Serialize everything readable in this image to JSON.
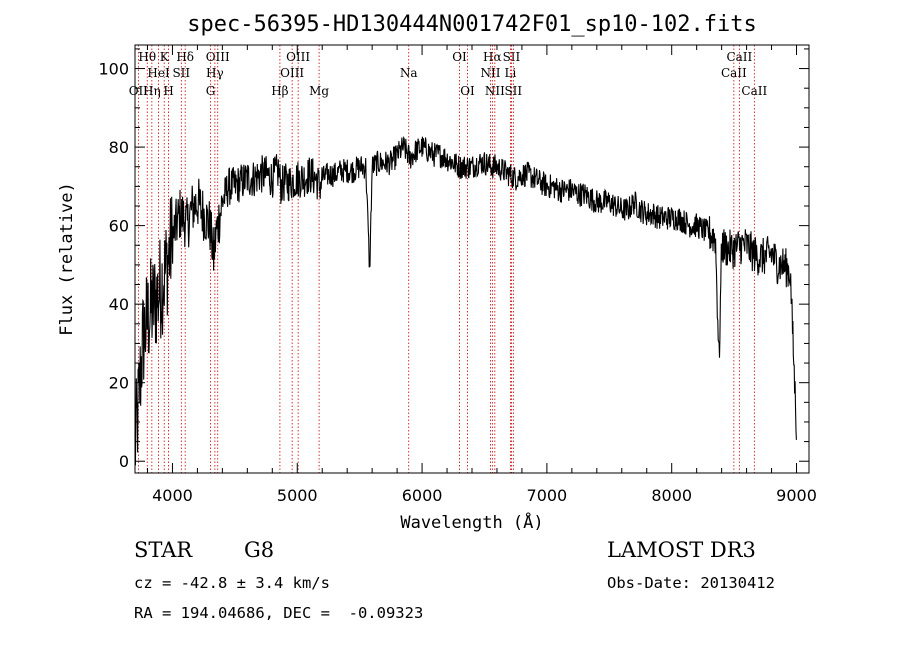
{
  "chart_data": {
    "type": "line",
    "title": "spec-56395-HD130444N001742F01_sp10-102.fits",
    "xlabel": "Wavelength (Å)",
    "ylabel": "Flux (relative)",
    "xlim": [
      3700,
      9100
    ],
    "ylim": [
      -3,
      106
    ],
    "x_ticks": [
      4000,
      5000,
      6000,
      7000,
      8000,
      9000
    ],
    "y_ticks": [
      0,
      20,
      40,
      60,
      80,
      100
    ],
    "grid": false,
    "series": [
      {
        "x": [
          3700,
          3730,
          3760,
          3790,
          3820,
          3850,
          3880,
          3910,
          3940,
          3970,
          4000,
          4030,
          4060,
          4090,
          4120,
          4150,
          4200,
          4250,
          4300,
          4330,
          4350,
          4400,
          4450,
          4500,
          4550,
          4600,
          4650,
          4700,
          4750,
          4800,
          4850,
          4870,
          4900,
          4950,
          5000,
          5050,
          5100,
          5150,
          5180,
          5200,
          5250,
          5300,
          5350,
          5400,
          5450,
          5500,
          5550,
          5580,
          5600,
          5650,
          5700,
          5750,
          5800,
          5850,
          5890,
          5900,
          5950,
          6000,
          6050,
          6100,
          6150,
          6200,
          6250,
          6300,
          6350,
          6400,
          6450,
          6500,
          6560,
          6600,
          6650,
          6700,
          6750,
          6800,
          6850,
          6900,
          6950,
          7000,
          7050,
          7100,
          7150,
          7200,
          7250,
          7300,
          7350,
          7400,
          7450,
          7500,
          7550,
          7600,
          7650,
          7700,
          7750,
          7800,
          7850,
          7900,
          7950,
          8000,
          8050,
          8100,
          8150,
          8200,
          8250,
          8300,
          8350,
          8380,
          8400,
          8450,
          8500,
          8550,
          8600,
          8650,
          8700,
          8750,
          8800,
          8850,
          8900,
          8950,
          9000
        ],
        "y": [
          3,
          15,
          30,
          35,
          38,
          40,
          42,
          45,
          48,
          52,
          57,
          60,
          63,
          62,
          60,
          64,
          66,
          63,
          60,
          52,
          58,
          66,
          70,
          70,
          71,
          72,
          72,
          73,
          73,
          72,
          74,
          70,
          71,
          71,
          72,
          72,
          73,
          72,
          70,
          72,
          73,
          73,
          74,
          74,
          74,
          75,
          75,
          48,
          75,
          76,
          76,
          76,
          78,
          80,
          78,
          77,
          79,
          80,
          79,
          78,
          78,
          77,
          76,
          75,
          75,
          75,
          76,
          76,
          75,
          75,
          74,
          73,
          72,
          73,
          73,
          72,
          71,
          70,
          70,
          69,
          69,
          69,
          68,
          68,
          67,
          66,
          66,
          66,
          65,
          64,
          64,
          66,
          64,
          63,
          63,
          62,
          62,
          62,
          62,
          61,
          60,
          60,
          59,
          58,
          57,
          25,
          55,
          54,
          54,
          55,
          55,
          53,
          52,
          52,
          53,
          50,
          50,
          48,
          8
        ]
      }
    ],
    "spectral_lines": [
      {
        "label": "Hθ",
        "x": 3798,
        "row": 1
      },
      {
        "label": "OII",
        "x": 3727,
        "row": 3
      },
      {
        "label": "Hη",
        "x": 3835,
        "row": 3
      },
      {
        "label": "K",
        "x": 3934,
        "row": 1
      },
      {
        "label": "H",
        "x": 3969,
        "row": 3
      },
      {
        "label": "HeI",
        "x": 3889,
        "row": 2
      },
      {
        "label": "SII",
        "x": 4071,
        "row": 2
      },
      {
        "label": "Hδ",
        "x": 4102,
        "row": 1
      },
      {
        "label": "OIII",
        "x": 4363,
        "row": 1
      },
      {
        "label": "Hγ",
        "x": 4340,
        "row": 2
      },
      {
        "label": "G",
        "x": 4305,
        "row": 3
      },
      {
        "label": "Hβ",
        "x": 4861,
        "row": 3
      },
      {
        "label": "OIII",
        "x": 4959,
        "row": 2
      },
      {
        "label": "OIII",
        "x": 5007,
        "row": 1
      },
      {
        "label": "Mg",
        "x": 5175,
        "row": 3
      },
      {
        "label": "Na",
        "x": 5893,
        "row": 2
      },
      {
        "label": "OI",
        "x": 6300,
        "row": 1
      },
      {
        "label": "OI",
        "x": 6364,
        "row": 3
      },
      {
        "label": "Hα",
        "x": 6563,
        "row": 1
      },
      {
        "label": "NII",
        "x": 6548,
        "row": 2
      },
      {
        "label": "NII",
        "x": 6583,
        "row": 3
      },
      {
        "label": "SII",
        "x": 6716,
        "row": 1
      },
      {
        "label": "Li",
        "x": 6708,
        "row": 2
      },
      {
        "label": "SII",
        "x": 6731,
        "row": 3
      },
      {
        "label": "CaII",
        "x": 8498,
        "row": 2
      },
      {
        "label": "CaII",
        "x": 8542,
        "row": 1
      },
      {
        "label": "CaII",
        "x": 8662,
        "row": 3
      }
    ]
  },
  "info": {
    "object_class": "STAR",
    "subclass": "G8",
    "survey": "LAMOST DR3",
    "cz_line": "cz = -42.8 ± 3.4 km/s",
    "obs_date_line": "Obs-Date: 20130412",
    "radec_line": "RA = 194.04686, DEC =  -0.09323"
  },
  "colors": {
    "spectrum": "#000000",
    "line_markers": "#cc0000",
    "background": "#ffffff"
  }
}
